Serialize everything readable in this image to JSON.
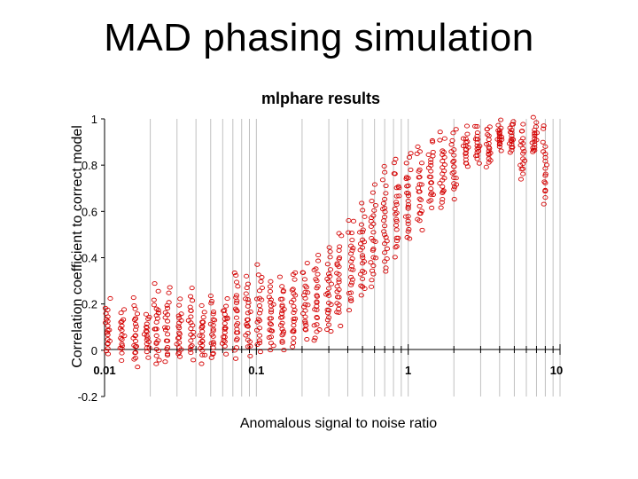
{
  "slide": {
    "title": "MAD phasing simulation"
  },
  "colors": {
    "points": "#d40000",
    "grid": "#c0c0c0",
    "axis": "#000000"
  },
  "chart_data": {
    "type": "scatter",
    "title": "mlphare results",
    "xlabel": "Anomalous signal to noise ratio",
    "ylabel": "Correlation coefficient to correct model",
    "xscale": "log",
    "xlim": [
      0.01,
      10
    ],
    "ylim": [
      -0.2,
      1
    ],
    "x_ticks": [
      0.01,
      0.1,
      1,
      10
    ],
    "x_tick_labels": [
      "0.01",
      "0.1",
      "1",
      "10"
    ],
    "y_ticks": [
      -0.2,
      0,
      0.2,
      0.4,
      0.6,
      0.8,
      1
    ],
    "y_tick_labels": [
      "-0.2",
      "0",
      "0.2",
      "0.4",
      "0.6",
      "0.8",
      "1"
    ],
    "series": [
      {
        "name": "mlphare",
        "marker": "open-circle",
        "columns": [
          {
            "x": 0.0105,
            "min": -0.03,
            "max": 0.22,
            "n": 12
          },
          {
            "x": 0.013,
            "min": -0.05,
            "max": 0.2,
            "n": 10
          },
          {
            "x": 0.016,
            "min": -0.08,
            "max": 0.23,
            "n": 14
          },
          {
            "x": 0.019,
            "min": -0.04,
            "max": 0.18,
            "n": 10
          },
          {
            "x": 0.022,
            "min": -0.08,
            "max": 0.29,
            "n": 14
          },
          {
            "x": 0.026,
            "min": -0.07,
            "max": 0.29,
            "n": 12
          },
          {
            "x": 0.031,
            "min": -0.05,
            "max": 0.22,
            "n": 12
          },
          {
            "x": 0.037,
            "min": -0.06,
            "max": 0.27,
            "n": 12
          },
          {
            "x": 0.044,
            "min": -0.06,
            "max": 0.2,
            "n": 12
          },
          {
            "x": 0.052,
            "min": -0.06,
            "max": 0.25,
            "n": 12
          },
          {
            "x": 0.062,
            "min": -0.02,
            "max": 0.23,
            "n": 12
          },
          {
            "x": 0.074,
            "min": -0.05,
            "max": 0.36,
            "n": 14
          },
          {
            "x": 0.088,
            "min": -0.04,
            "max": 0.33,
            "n": 14
          },
          {
            "x": 0.105,
            "min": -0.03,
            "max": 0.38,
            "n": 14
          },
          {
            "x": 0.125,
            "min": -0.02,
            "max": 0.32,
            "n": 14
          },
          {
            "x": 0.148,
            "min": -0.01,
            "max": 0.32,
            "n": 14
          },
          {
            "x": 0.176,
            "min": 0.0,
            "max": 0.35,
            "n": 14
          },
          {
            "x": 0.21,
            "min": 0.04,
            "max": 0.38,
            "n": 14
          },
          {
            "x": 0.25,
            "min": 0.02,
            "max": 0.42,
            "n": 16
          },
          {
            "x": 0.3,
            "min": 0.05,
            "max": 0.45,
            "n": 16
          },
          {
            "x": 0.35,
            "min": 0.1,
            "max": 0.52,
            "n": 16
          },
          {
            "x": 0.42,
            "min": 0.15,
            "max": 0.58,
            "n": 16
          },
          {
            "x": 0.5,
            "min": 0.21,
            "max": 0.64,
            "n": 16
          },
          {
            "x": 0.59,
            "min": 0.26,
            "max": 0.72,
            "n": 16
          },
          {
            "x": 0.7,
            "min": 0.31,
            "max": 0.8,
            "n": 16
          },
          {
            "x": 0.84,
            "min": 0.38,
            "max": 0.84,
            "n": 16
          },
          {
            "x": 1.0,
            "min": 0.45,
            "max": 0.87,
            "n": 16
          },
          {
            "x": 1.19,
            "min": 0.5,
            "max": 0.9,
            "n": 14
          },
          {
            "x": 1.41,
            "min": 0.6,
            "max": 0.92,
            "n": 14
          },
          {
            "x": 1.68,
            "min": 0.6,
            "max": 0.95,
            "n": 14
          },
          {
            "x": 2.0,
            "min": 0.65,
            "max": 0.96,
            "n": 12
          },
          {
            "x": 2.4,
            "min": 0.78,
            "max": 0.97,
            "n": 10
          },
          {
            "x": 2.85,
            "min": 0.8,
            "max": 0.98,
            "n": 10
          },
          {
            "x": 3.4,
            "min": 0.78,
            "max": 0.99,
            "n": 10
          },
          {
            "x": 4.0,
            "min": 0.86,
            "max": 0.99,
            "n": 10
          },
          {
            "x": 4.8,
            "min": 0.84,
            "max": 1.0,
            "n": 10
          },
          {
            "x": 5.7,
            "min": 0.72,
            "max": 1.0,
            "n": 10
          },
          {
            "x": 6.8,
            "min": 0.84,
            "max": 1.0,
            "n": 10
          },
          {
            "x": 8.0,
            "min": 0.6,
            "max": 1.0,
            "n": 10
          }
        ]
      }
    ]
  }
}
